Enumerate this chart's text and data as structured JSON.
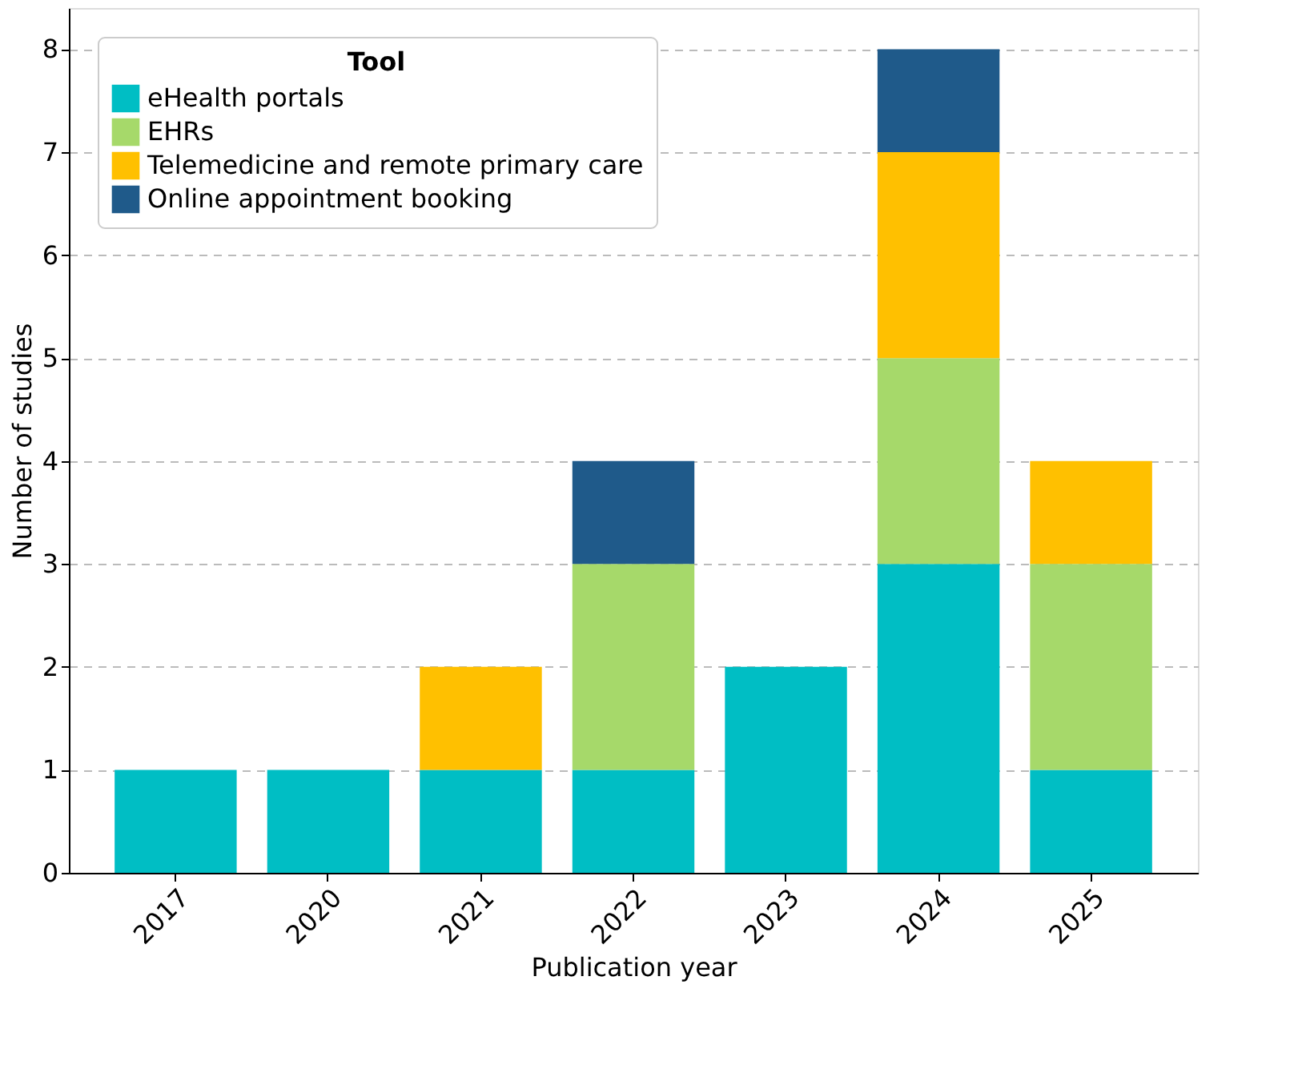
{
  "chart_data": {
    "type": "bar",
    "stacked": true,
    "xlabel": "Publication year",
    "ylabel": "Number of studies",
    "legend_title": "Tool",
    "legend": "top left",
    "grid": "y",
    "categories": [
      "2017",
      "2020",
      "2021",
      "2022",
      "2023",
      "2024",
      "2025"
    ],
    "series": [
      {
        "name": "eHealth portals",
        "color": "#00bec4",
        "values": [
          1,
          1,
          1,
          1,
          2,
          3,
          1
        ]
      },
      {
        "name": "EHRs",
        "color": "#a6d96a",
        "values": [
          null,
          null,
          null,
          2,
          null,
          2,
          2
        ]
      },
      {
        "name": "Telemedicine and remote primary care",
        "color": "#ffc000",
        "values": [
          null,
          null,
          1,
          null,
          null,
          2,
          1
        ]
      },
      {
        "name": "Online appointment booking",
        "color": "#1f5a8a",
        "values": [
          null,
          null,
          null,
          1,
          null,
          1,
          null
        ]
      }
    ],
    "ylim": [
      0,
      8.4
    ],
    "yticks": [
      0,
      1,
      2,
      3,
      4,
      5,
      6,
      7,
      8
    ]
  }
}
